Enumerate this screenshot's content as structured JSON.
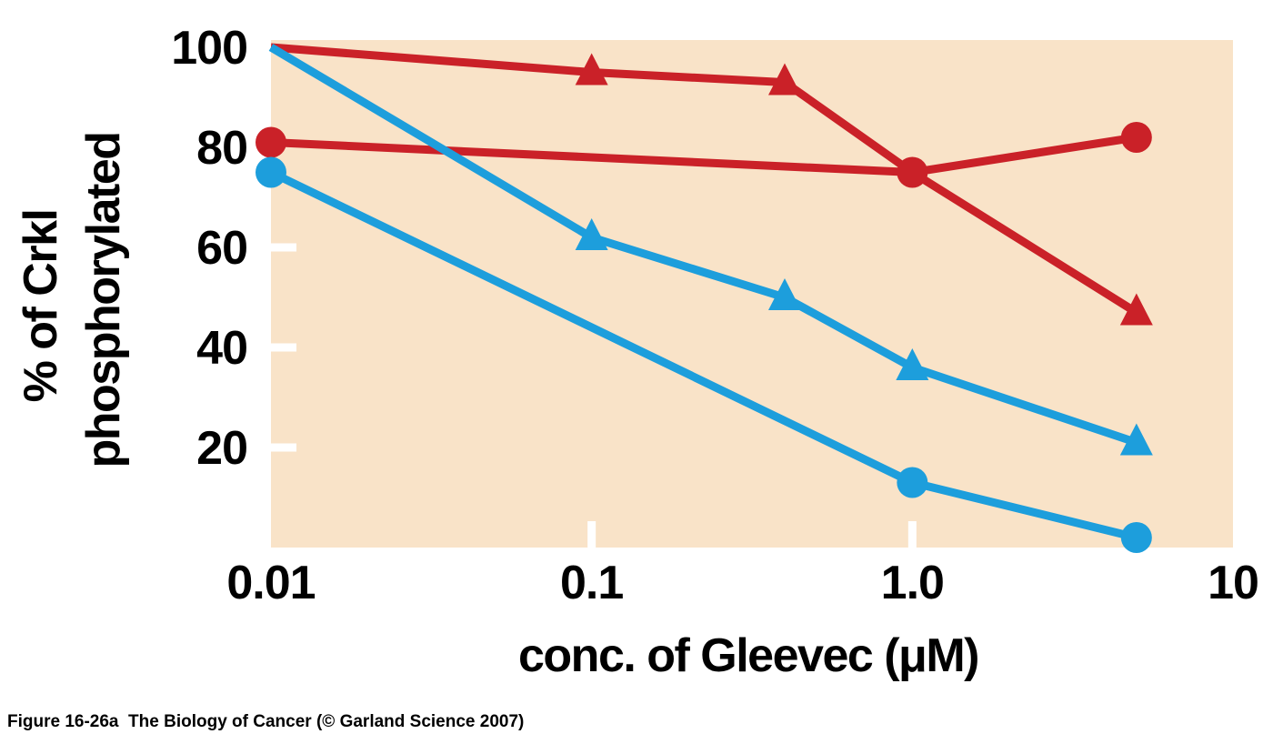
{
  "caption": "Figure 16-26a  The Biology of Cancer (© Garland Science 2007)",
  "chart_data": {
    "type": "line",
    "title": "",
    "xlabel": "conc. of Gleevec (μM)",
    "ylabel": "% of Crkl phosphorylated",
    "ylabel_lines": [
      "% of Crkl",
      "phosphorylated"
    ],
    "x_scale": "log",
    "xlim": [
      0.01,
      10
    ],
    "ylim": [
      0,
      100
    ],
    "grid": false,
    "legend": "none",
    "plot_background": "#f9e3c8",
    "axis_tick_color": "#ffffff",
    "text_color": "#000000",
    "x_ticks": [
      {
        "value": 0.01,
        "label": "0.01",
        "notch": false
      },
      {
        "value": 0.1,
        "label": "0.1",
        "notch": true
      },
      {
        "value": 1.0,
        "label": "1.0",
        "notch": true
      },
      {
        "value": 10,
        "label": "10",
        "notch": false
      }
    ],
    "y_ticks": [
      {
        "value": 100,
        "label": "100",
        "notch": false
      },
      {
        "value": 80,
        "label": "80",
        "notch": false
      },
      {
        "value": 60,
        "label": "60",
        "notch": true
      },
      {
        "value": 40,
        "label": "40",
        "notch": true
      },
      {
        "value": 20,
        "label": "20",
        "notch": true
      }
    ],
    "series": [
      {
        "name": "red-circles",
        "color": "#ca2128",
        "marker": "circle",
        "points": [
          {
            "x": 0.01,
            "y": 81,
            "marker": true
          },
          {
            "x": 1.0,
            "y": 75,
            "marker": true
          },
          {
            "x": 5,
            "y": 82,
            "marker": true
          }
        ]
      },
      {
        "name": "red-triangles",
        "color": "#ca2128",
        "marker": "triangle",
        "points": [
          {
            "x": 0.01,
            "y": 100,
            "marker": false
          },
          {
            "x": 0.1,
            "y": 95,
            "marker": true
          },
          {
            "x": 0.4,
            "y": 93,
            "marker": true
          },
          {
            "x": 1.0,
            "y": 75,
            "marker": false
          },
          {
            "x": 5,
            "y": 47,
            "marker": true
          }
        ]
      },
      {
        "name": "blue-triangles",
        "color": "#1d9edc",
        "marker": "triangle",
        "points": [
          {
            "x": 0.01,
            "y": 100,
            "marker": false
          },
          {
            "x": 0.1,
            "y": 62,
            "marker": true
          },
          {
            "x": 0.4,
            "y": 50,
            "marker": true
          },
          {
            "x": 1.0,
            "y": 36,
            "marker": true
          },
          {
            "x": 5,
            "y": 21,
            "marker": true
          }
        ]
      },
      {
        "name": "blue-circles",
        "color": "#1d9edc",
        "marker": "circle",
        "points": [
          {
            "x": 0.01,
            "y": 75,
            "marker": true
          },
          {
            "x": 1.0,
            "y": 13,
            "marker": true
          },
          {
            "x": 5,
            "y": 2,
            "marker": true
          }
        ]
      }
    ]
  }
}
